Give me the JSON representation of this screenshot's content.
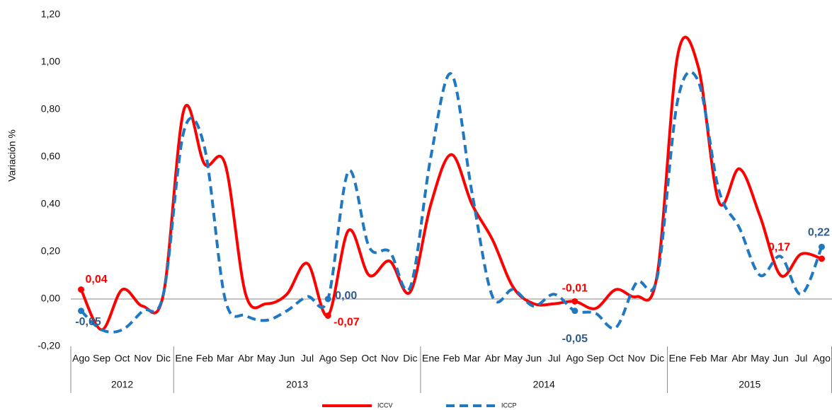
{
  "chart_data": {
    "type": "line",
    "y_label": "Variación %",
    "categories": [
      "Ago",
      "Sep",
      "Oct",
      "Nov",
      "Dic",
      "Ene",
      "Feb",
      "Mar",
      "Abr",
      "May",
      "Jun",
      "Jul",
      "Ago",
      "Sep",
      "Oct",
      "Nov",
      "Dic",
      "Ene",
      "Feb",
      "Mar",
      "Abr",
      "May",
      "Jun",
      "Jul",
      "Ago",
      "Sep",
      "Oct",
      "Nov",
      "Dic",
      "Ene",
      "Feb",
      "Mar",
      "Abr",
      "May",
      "Jun",
      "Jul",
      "Ago"
    ],
    "category_groups": [
      {
        "label": "2012",
        "span": 5
      },
      {
        "label": "2013",
        "span": 12
      },
      {
        "label": "2014",
        "span": 12
      },
      {
        "label": "2015",
        "span": 8
      }
    ],
    "series": [
      {
        "name": "ICCV",
        "color": "#ff0000",
        "dash": false,
        "values": [
          0.04,
          -0.13,
          0.04,
          -0.03,
          0.02,
          0.8,
          0.57,
          0.57,
          0.02,
          -0.02,
          0.02,
          0.15,
          -0.07,
          0.29,
          0.1,
          0.16,
          0.03,
          0.4,
          0.61,
          0.4,
          0.25,
          0.05,
          -0.02,
          -0.02,
          -0.01,
          -0.04,
          0.04,
          0.01,
          0.1,
          1.03,
          0.98,
          0.41,
          0.55,
          0.35,
          0.1,
          0.19,
          0.17
        ],
        "value_labels": [
          "0,04",
          null,
          null,
          null,
          null,
          null,
          null,
          null,
          null,
          null,
          null,
          null,
          "-0,07",
          null,
          null,
          null,
          null,
          null,
          null,
          null,
          null,
          null,
          null,
          null,
          "-0,01",
          null,
          null,
          null,
          null,
          null,
          null,
          null,
          null,
          null,
          null,
          null,
          "0,17"
        ]
      },
      {
        "name": "ICCP",
        "color": "#1f78c1",
        "dash": true,
        "values": [
          -0.05,
          -0.13,
          -0.13,
          -0.05,
          0.02,
          0.71,
          0.64,
          0.0,
          -0.07,
          -0.09,
          -0.05,
          0.01,
          0.0,
          0.54,
          0.22,
          0.2,
          0.05,
          0.6,
          0.95,
          0.45,
          0.01,
          0.04,
          -0.03,
          0.02,
          -0.05,
          -0.06,
          -0.12,
          0.07,
          0.09,
          0.84,
          0.92,
          0.46,
          0.3,
          0.1,
          0.18,
          0.02,
          0.22
        ],
        "value_labels": [
          "-0,05",
          null,
          null,
          null,
          null,
          null,
          null,
          null,
          null,
          null,
          null,
          null,
          "0,00",
          null,
          null,
          null,
          null,
          null,
          null,
          null,
          null,
          null,
          null,
          null,
          "-0,05",
          null,
          null,
          null,
          null,
          null,
          null,
          null,
          null,
          null,
          null,
          null,
          "0,22"
        ]
      }
    ],
    "ylim": [
      -0.2,
      1.2
    ],
    "yticks": [
      {
        "value": -0.2,
        "label": "-0,20"
      },
      {
        "value": 0,
        "label": "0,00"
      },
      {
        "value": 0.2,
        "label": "0,20"
      },
      {
        "value": 0.4,
        "label": "0,40"
      },
      {
        "value": 0.6,
        "label": "0,60"
      },
      {
        "value": 0.8,
        "label": "0,80"
      },
      {
        "value": 1.0,
        "label": "1,00"
      },
      {
        "value": 1.2,
        "label": "1,20"
      }
    ],
    "grid": false,
    "legend": "bottom"
  }
}
